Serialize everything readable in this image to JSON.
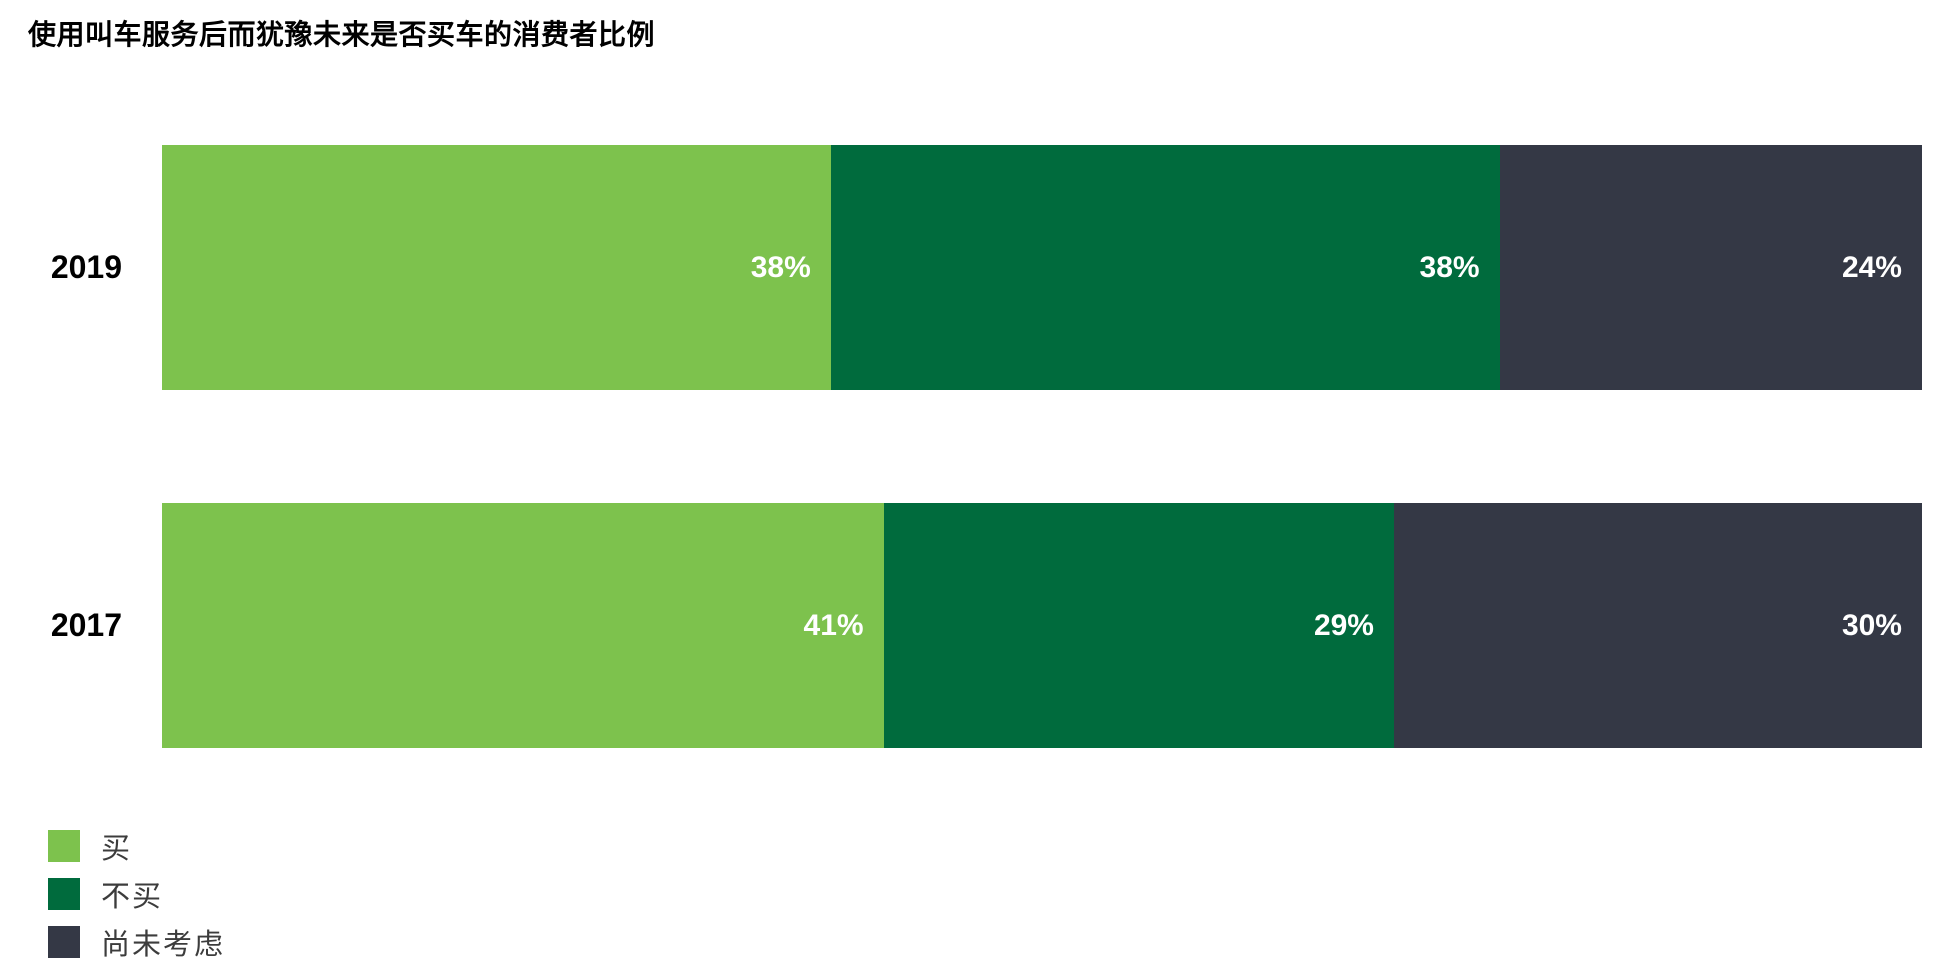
{
  "chart_data": {
    "type": "bar",
    "orientation": "horizontal",
    "stacked": true,
    "title": "使用叫车服务后而犹豫未来是否买车的消费者比例",
    "categories": [
      "2019",
      "2017"
    ],
    "series": [
      {
        "name": "买",
        "color": "#7DC24D",
        "values": [
          38,
          41
        ]
      },
      {
        "name": "不买",
        "color": "#006B3D",
        "values": [
          38,
          29
        ]
      },
      {
        "name": "尚未考虑",
        "color": "#343845",
        "values": [
          24,
          30
        ]
      }
    ],
    "value_suffix": "%",
    "xlim": [
      0,
      100
    ],
    "grid": false,
    "data_labels": "inside-end",
    "legend_position": "bottom-left",
    "colors": {
      "background": "#ffffff",
      "title_text": "#000000",
      "category_text": "#000000",
      "data_label_text": "#ffffff",
      "legend_text": "#3c3c3c"
    }
  }
}
